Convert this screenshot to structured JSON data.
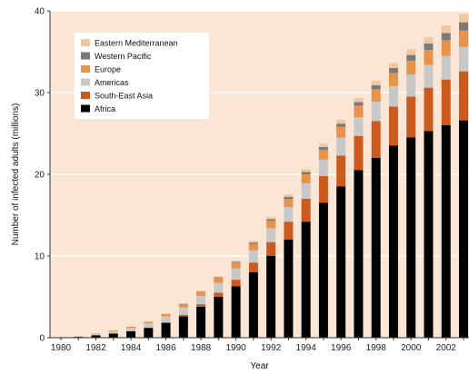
{
  "chart_data": {
    "type": "bar",
    "stacked": true,
    "categories": [
      "1980",
      "1981",
      "1982",
      "1983",
      "1984",
      "1985",
      "1986",
      "1987",
      "1988",
      "1989",
      "1990",
      "1991",
      "1992",
      "1993",
      "1994",
      "1995",
      "1996",
      "1997",
      "1998",
      "1999",
      "2000",
      "2001",
      "2002",
      "2003"
    ],
    "x_tick_labels": [
      "1980",
      "1982",
      "1984",
      "1986",
      "1988",
      "1990",
      "1992",
      "1994",
      "1996",
      "1998",
      "2000",
      "2002"
    ],
    "series": [
      {
        "name": "Africa",
        "color": "#000000",
        "values": [
          0.05,
          0.1,
          0.3,
          0.5,
          0.8,
          1.2,
          1.8,
          2.6,
          3.8,
          5.0,
          6.3,
          8.0,
          10.0,
          12.0,
          14.2,
          16.5,
          18.5,
          20.5,
          22.0,
          23.5,
          24.5,
          25.3,
          26.0,
          26.6
        ]
      },
      {
        "name": "South-East Asia",
        "color": "#cc5a1e",
        "values": [
          0.0,
          0.0,
          0.0,
          0.0,
          0.0,
          0.05,
          0.1,
          0.2,
          0.3,
          0.5,
          0.8,
          1.2,
          1.7,
          2.2,
          2.8,
          3.3,
          3.8,
          4.2,
          4.5,
          4.8,
          5.0,
          5.3,
          5.6,
          6.0
        ]
      },
      {
        "name": "Americas",
        "color": "#c8c8c8",
        "values": [
          0.05,
          0.1,
          0.15,
          0.3,
          0.4,
          0.5,
          0.7,
          0.9,
          1.0,
          1.2,
          1.4,
          1.5,
          1.7,
          1.8,
          1.9,
          2.0,
          2.2,
          2.3,
          2.4,
          2.5,
          2.7,
          2.8,
          2.9,
          3.0
        ]
      },
      {
        "name": "Europe",
        "color": "#e8924a",
        "values": [
          0.0,
          0.0,
          0.05,
          0.1,
          0.15,
          0.2,
          0.3,
          0.4,
          0.5,
          0.6,
          0.7,
          0.8,
          0.9,
          1.0,
          1.1,
          1.2,
          1.3,
          1.4,
          1.5,
          1.6,
          1.7,
          1.8,
          1.9,
          2.0
        ]
      },
      {
        "name": "Western Pacific",
        "color": "#7a7a7a",
        "values": [
          0.0,
          0.0,
          0.0,
          0.0,
          0.0,
          0.0,
          0.0,
          0.05,
          0.05,
          0.1,
          0.1,
          0.15,
          0.2,
          0.25,
          0.3,
          0.35,
          0.4,
          0.45,
          0.5,
          0.6,
          0.7,
          0.8,
          0.9,
          1.0
        ]
      },
      {
        "name": "Eastern Mediterranean",
        "color": "#f2c69e",
        "values": [
          0.0,
          0.0,
          0.0,
          0.0,
          0.0,
          0.0,
          0.05,
          0.05,
          0.1,
          0.1,
          0.15,
          0.2,
          0.25,
          0.3,
          0.35,
          0.4,
          0.45,
          0.5,
          0.55,
          0.6,
          0.7,
          0.8,
          0.9,
          1.0
        ]
      }
    ],
    "legend_order": [
      "Eastern Mediterranean",
      "Western Pacific",
      "Europe",
      "Americas",
      "South-East Asia",
      "Africa"
    ],
    "y_ticks": [
      0,
      10,
      20,
      30,
      40
    ],
    "ylim": [
      0,
      40
    ],
    "xlabel": "Year",
    "ylabel": "Number of infected adults (millions)",
    "grid": "horizontal",
    "legend_position": "top-left",
    "plot_background": "#fbe6d6"
  }
}
